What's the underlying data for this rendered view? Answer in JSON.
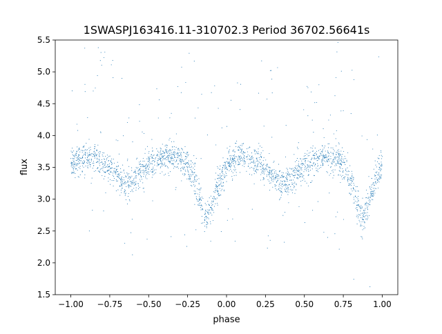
{
  "chart_data": {
    "type": "scatter",
    "title": "1SWASPJ163416.11-310702.3 Period 36702.56641s",
    "xlabel": "phase",
    "ylabel": "flux",
    "xlim": [
      -1.1,
      1.1
    ],
    "ylim": [
      1.5,
      5.5
    ],
    "xticks": [
      -1.0,
      -0.75,
      -0.5,
      -0.25,
      0.0,
      0.25,
      0.5,
      0.75,
      1.0
    ],
    "xtick_labels": [
      "−1.00",
      "−0.75",
      "−0.50",
      "−0.25",
      "0.00",
      "0.25",
      "0.50",
      "0.75",
      "1.00"
    ],
    "yticks": [
      1.5,
      2.0,
      2.5,
      3.0,
      3.5,
      4.0,
      4.5,
      5.0,
      5.5
    ],
    "ytick_labels": [
      "1.5",
      "2.0",
      "2.5",
      "3.0",
      "3.5",
      "4.0",
      "4.5",
      "5.0",
      "5.5"
    ],
    "grid": false,
    "marker_color": "#1f77b4",
    "phase_range": [
      -1.0,
      1.0
    ],
    "mean_curve_one_cycle": {
      "phase": [
        0.0,
        0.05,
        0.1,
        0.15,
        0.2,
        0.25,
        0.3,
        0.35,
        0.37,
        0.4,
        0.45,
        0.5,
        0.55,
        0.6,
        0.65,
        0.7,
        0.75,
        0.8,
        0.85,
        0.87,
        0.9,
        0.95,
        1.0
      ],
      "flux": [
        3.55,
        3.62,
        3.65,
        3.62,
        3.55,
        3.48,
        3.38,
        3.24,
        3.22,
        3.26,
        3.4,
        3.52,
        3.6,
        3.63,
        3.65,
        3.62,
        3.55,
        3.3,
        2.8,
        2.68,
        2.85,
        3.25,
        3.52
      ]
    },
    "scatter_sigma": 0.12,
    "n_points": 2600
  }
}
